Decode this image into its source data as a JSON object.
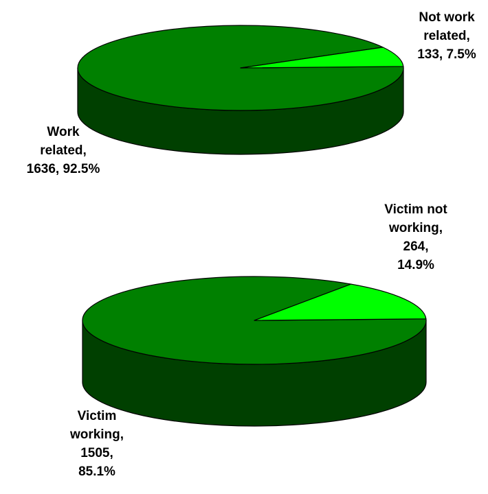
{
  "chart_data": [
    {
      "type": "pie",
      "style": "3d-pie",
      "slices": [
        {
          "label_lines": [
            "Work",
            "related,",
            "1636, 92.5%"
          ],
          "category": "Work related",
          "value": 1636,
          "percent": 92.5,
          "color": "#008000"
        },
        {
          "label_lines": [
            "Not work",
            "related,",
            "133, 7.5%"
          ],
          "category": "Not work related",
          "value": 133,
          "percent": 7.5,
          "color": "#00ff00"
        }
      ],
      "legend": "none",
      "title": ""
    },
    {
      "type": "pie",
      "style": "3d-pie",
      "slices": [
        {
          "label_lines": [
            "Victim",
            "working,",
            "1505,",
            "85.1%"
          ],
          "category": "Victim working",
          "value": 1505,
          "percent": 85.1,
          "color": "#008000"
        },
        {
          "label_lines": [
            "Victim not",
            "working,",
            "264,",
            "14.9%"
          ],
          "category": "Victim not working",
          "value": 264,
          "percent": 14.9,
          "color": "#00ff00"
        }
      ],
      "legend": "none",
      "title": ""
    }
  ]
}
